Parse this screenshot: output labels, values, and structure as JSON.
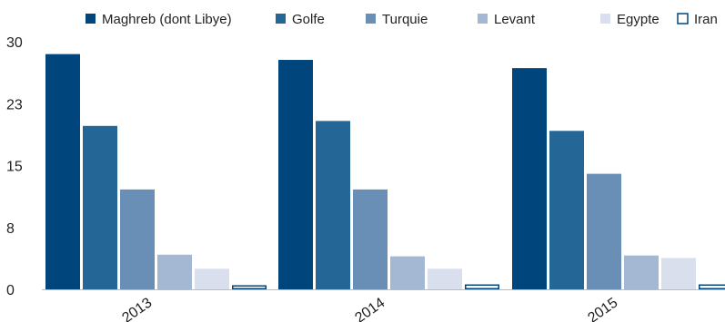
{
  "chart_data": {
    "type": "bar",
    "title": "",
    "xlabel": "",
    "ylabel": "",
    "categories": [
      "2013",
      "2014",
      "2015"
    ],
    "ylim": [
      0,
      30
    ],
    "yticks": [
      "0",
      "8",
      "15",
      "23",
      "30"
    ],
    "ytick_values": [
      0,
      7.5,
      15,
      22.5,
      30
    ],
    "grid": false,
    "legend_position": "top",
    "series": [
      {
        "name": "Maghreb (dont Libye)",
        "color": "#00467c",
        "filled": true,
        "values": [
          28.5,
          27.8,
          26.8
        ]
      },
      {
        "name": "Golfe",
        "color": "#246796",
        "filled": true,
        "values": [
          19.8,
          20.4,
          19.2
        ]
      },
      {
        "name": "Turquie",
        "color": "#6a8fb7",
        "filled": true,
        "values": [
          12.1,
          12.1,
          14.0
        ]
      },
      {
        "name": "Levant",
        "color": "#a5b8d3",
        "filled": true,
        "values": [
          4.2,
          4.0,
          4.1
        ]
      },
      {
        "name": "Egypte",
        "color": "#d9dfec",
        "filled": true,
        "values": [
          2.5,
          2.5,
          3.8
        ]
      },
      {
        "name": "Iran",
        "color": "#00467c",
        "filled": false,
        "values": [
          0.5,
          0.6,
          0.6
        ]
      }
    ]
  }
}
